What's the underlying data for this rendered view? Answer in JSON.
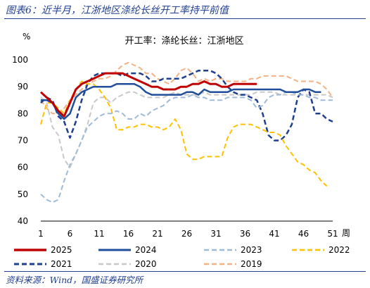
{
  "figure": {
    "title": "图表6：近半月，江浙地区涤纶长丝开工率持平前值",
    "source": "资料来源：Wind，国盛证券研究所"
  },
  "chart_data": {
    "type": "line",
    "title": "开工率：涤纶长丝：江浙地区",
    "ylabel": "%",
    "xlabel": "周",
    "ylim": [
      40,
      100
    ],
    "xlim": [
      1,
      51
    ],
    "yticks": [
      40,
      50,
      60,
      70,
      80,
      90,
      100
    ],
    "xticks": [
      1,
      6,
      11,
      16,
      21,
      26,
      31,
      36,
      41,
      46,
      51
    ],
    "legend_position": "bottom",
    "series": [
      {
        "name": "2025",
        "color": "#c00000",
        "style": "solid",
        "width": 3,
        "x": [
          1,
          2,
          3,
          4,
          5,
          6,
          7,
          8,
          9,
          10,
          11,
          12,
          13,
          14,
          15,
          16,
          17,
          18,
          19,
          20,
          21,
          22,
          23,
          24,
          25,
          26,
          27,
          28,
          29,
          30,
          31,
          32,
          33,
          34,
          35,
          36,
          37,
          38
        ],
        "y": [
          88,
          86,
          84,
          81,
          79,
          84,
          89,
          91,
          92,
          93,
          94,
          95,
          95,
          95,
          95,
          94,
          93,
          92,
          91,
          90,
          90,
          89,
          89,
          89,
          90,
          90,
          91,
          91,
          92,
          91,
          91,
          90,
          90,
          91,
          91,
          91,
          91,
          91
        ]
      },
      {
        "name": "2024",
        "color": "#1f4e9c",
        "style": "solid",
        "width": 2.5,
        "x": [
          1,
          2,
          3,
          4,
          5,
          6,
          7,
          8,
          9,
          10,
          11,
          12,
          13,
          14,
          15,
          16,
          17,
          18,
          19,
          20,
          21,
          22,
          23,
          24,
          25,
          26,
          27,
          28,
          29,
          30,
          31,
          32,
          33,
          34,
          35,
          36,
          37,
          38,
          39,
          40,
          41,
          42,
          43,
          44,
          45,
          46,
          47,
          48,
          49
        ],
        "y": [
          85,
          85,
          84,
          80,
          78,
          80,
          86,
          88,
          89,
          90,
          90,
          90,
          90,
          91,
          91,
          91,
          91,
          90,
          88,
          87,
          87,
          87,
          87,
          87,
          87,
          88,
          88,
          87,
          89,
          88,
          88,
          88,
          88,
          89,
          89,
          89,
          89,
          89,
          89,
          89,
          89,
          89,
          88,
          88,
          88,
          89,
          89,
          88,
          88
        ]
      },
      {
        "name": "2023",
        "color": "#9dbbd9",
        "style": "dash",
        "width": 2,
        "x": [
          1,
          2,
          3,
          4,
          5,
          6,
          7,
          8,
          9,
          10,
          11,
          12,
          13,
          14,
          15,
          16,
          17,
          18,
          19,
          20,
          21,
          22,
          23,
          24,
          25,
          26,
          27,
          28,
          29,
          30,
          31,
          32,
          33,
          34,
          35,
          36,
          37,
          38,
          39,
          40,
          41,
          42,
          43,
          44,
          45,
          46,
          47,
          48,
          49,
          50,
          51
        ],
        "y": [
          50,
          48,
          47,
          48,
          55,
          61,
          65,
          70,
          75,
          77,
          79,
          80,
          80,
          81,
          80,
          78,
          78,
          80,
          79,
          81,
          82,
          83,
          85,
          86,
          86,
          86,
          87,
          86,
          86,
          85,
          85,
          85,
          86,
          86,
          86,
          86,
          85,
          82,
          83,
          86,
          87,
          87,
          88,
          88,
          87,
          87,
          86,
          86,
          85,
          85,
          85
        ]
      },
      {
        "name": "2022",
        "color": "#ffc000",
        "style": "dash",
        "width": 2,
        "x": [
          1,
          2,
          3,
          4,
          5,
          6,
          7,
          8,
          9,
          10,
          11,
          12,
          13,
          14,
          15,
          16,
          17,
          18,
          19,
          20,
          21,
          22,
          23,
          24,
          25,
          26,
          27,
          28,
          29,
          30,
          31,
          32,
          33,
          34,
          35,
          36,
          37,
          38,
          39,
          40,
          41,
          42,
          43,
          44,
          45,
          46,
          47,
          48,
          49,
          50
        ],
        "y": [
          76,
          84,
          84,
          82,
          80,
          85,
          89,
          92,
          91,
          91,
          89,
          86,
          82,
          74,
          74,
          75,
          75,
          76,
          76,
          75,
          75,
          74,
          75,
          78,
          74,
          65,
          63,
          63,
          64,
          64,
          64,
          64,
          71,
          75,
          76,
          76,
          76,
          75,
          74,
          73,
          73,
          72,
          68,
          65,
          62,
          61,
          59,
          58,
          55,
          53
        ]
      },
      {
        "name": "2021",
        "color": "#1f3f8f",
        "style": "dash",
        "width": 2.5,
        "x": [
          1,
          2,
          3,
          4,
          5,
          6,
          7,
          8,
          9,
          10,
          11,
          12,
          13,
          14,
          15,
          16,
          17,
          18,
          19,
          20,
          21,
          22,
          23,
          24,
          25,
          26,
          27,
          28,
          29,
          30,
          31,
          32,
          33,
          34,
          35,
          36,
          37,
          38,
          39,
          40,
          41,
          42,
          43,
          44,
          45,
          46,
          47,
          48,
          49,
          50,
          51
        ],
        "y": [
          84,
          86,
          85,
          79,
          77,
          71,
          77,
          85,
          91,
          94,
          95,
          95,
          95,
          95,
          94,
          95,
          95,
          95,
          94,
          92,
          92,
          93,
          93,
          93,
          93,
          94,
          95,
          96,
          96,
          96,
          95,
          93,
          90,
          88,
          87,
          87,
          86,
          85,
          80,
          72,
          70,
          70,
          72,
          76,
          86,
          89,
          88,
          80,
          80,
          78,
          77
        ]
      },
      {
        "name": "2020",
        "color": "#c8c8c8",
        "style": "dash",
        "width": 2,
        "x": [
          1,
          2,
          3,
          4,
          5,
          6,
          7,
          8,
          9,
          10,
          11,
          12,
          13,
          14,
          15,
          16,
          17,
          18,
          19,
          20,
          21,
          22,
          23,
          24,
          25,
          26,
          27,
          28,
          29,
          30,
          31,
          32,
          33,
          34,
          35,
          36,
          37,
          38,
          39,
          40,
          41,
          42,
          43,
          44,
          45,
          46,
          47,
          48,
          49,
          50,
          51
        ],
        "y": [
          86,
          84,
          75,
          72,
          63,
          60,
          65,
          70,
          76,
          84,
          86,
          86,
          84,
          86,
          87,
          88,
          88,
          87,
          86,
          86,
          86,
          86,
          87,
          88,
          87,
          87,
          87,
          87,
          88,
          87,
          87,
          87,
          87,
          87,
          87,
          87,
          87,
          88,
          88,
          88,
          88,
          87,
          87,
          87,
          87,
          87,
          87,
          87,
          87,
          87,
          86
        ]
      },
      {
        "name": "2019",
        "color": "#f4b183",
        "style": "dash",
        "width": 2,
        "x": [
          1,
          2,
          3,
          4,
          5,
          6,
          7,
          8,
          9,
          10,
          11,
          12,
          13,
          14,
          15,
          16,
          17,
          18,
          19,
          20,
          21,
          22,
          23,
          24,
          25,
          26,
          27,
          28,
          29,
          30,
          31,
          32,
          33,
          34,
          35,
          36,
          37,
          38,
          39,
          40,
          41,
          42,
          43,
          44,
          45,
          46,
          47,
          48,
          49,
          50,
          51
        ],
        "y": [
          85,
          82,
          80,
          80,
          82,
          85,
          87,
          89,
          91,
          92,
          93,
          93,
          94,
          96,
          98,
          99,
          98,
          97,
          95,
          95,
          93,
          92,
          91,
          93,
          96,
          97,
          95,
          92,
          93,
          92,
          93,
          93,
          92,
          92,
          92,
          92,
          93,
          93,
          94,
          94,
          94,
          94,
          94,
          93,
          92,
          92,
          92,
          92,
          91,
          89,
          86
        ]
      }
    ]
  }
}
